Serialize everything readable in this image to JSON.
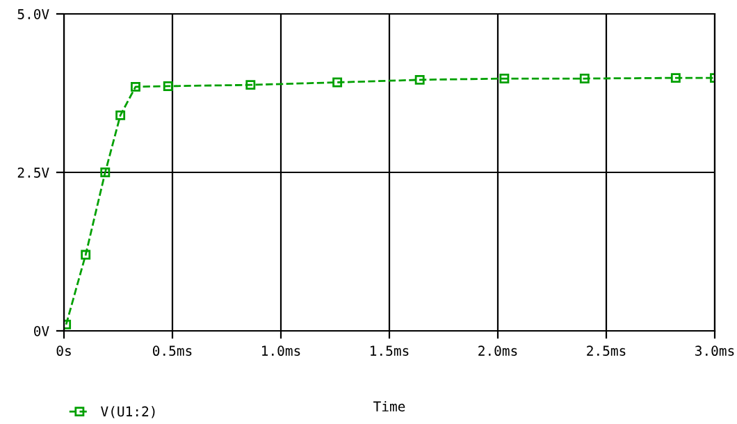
{
  "chart_data": {
    "type": "line",
    "xlabel": "Time",
    "x": [
      0.01,
      0.1,
      0.19,
      0.26,
      0.33,
      0.48,
      0.86,
      1.26,
      1.64,
      2.03,
      2.4,
      2.82,
      3.0
    ],
    "series": [
      {
        "name": "V(U1:2)",
        "color": "#00a000",
        "values": [
          0.1,
          1.2,
          2.5,
          3.4,
          3.85,
          3.86,
          3.88,
          3.92,
          3.96,
          3.98,
          3.98,
          3.99,
          3.99
        ]
      }
    ],
    "xlim": [
      0,
      3.0
    ],
    "xticks": [
      {
        "value": 0,
        "label": "0s"
      },
      {
        "value": 0.5,
        "label": "0.5ms"
      },
      {
        "value": 1.0,
        "label": "1.0ms"
      },
      {
        "value": 1.5,
        "label": "1.5ms"
      },
      {
        "value": 2.0,
        "label": "2.0ms"
      },
      {
        "value": 2.5,
        "label": "2.5ms"
      },
      {
        "value": 3.0,
        "label": "3.0ms"
      }
    ],
    "ylim": [
      0,
      5.0
    ],
    "yticks": [
      {
        "value": 0,
        "label": "0V"
      },
      {
        "value": 2.5,
        "label": "2.5V"
      },
      {
        "value": 5.0,
        "label": "5.0V"
      }
    ],
    "grid": true,
    "legend": "bottom left",
    "marker": "square",
    "line_style": "dashed"
  }
}
